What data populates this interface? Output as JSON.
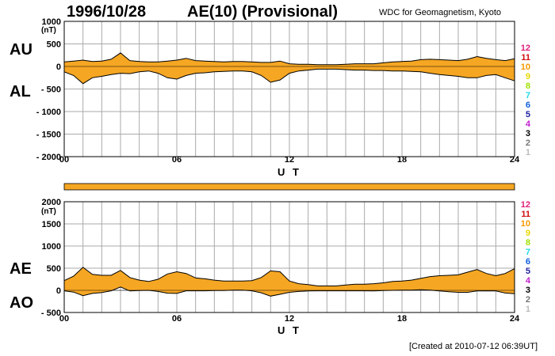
{
  "header": {
    "date": "1996/10/28",
    "title": "AE(10) (Provisional)",
    "organization": "WDC for Geomagnetism, Kyoto"
  },
  "footer": {
    "created": "[Created at 2010-07-12 06:39UT]"
  },
  "colors": {
    "fill": "#f5a623",
    "line": "#000000",
    "grid": "#aaaaaa",
    "bar": "#f5a623"
  },
  "legend_numbers": [
    {
      "label": "12",
      "color": "#e0207a"
    },
    {
      "label": "11",
      "color": "#d01010"
    },
    {
      "label": "10",
      "color": "#f59a00"
    },
    {
      "label": "9",
      "color": "#e8d800"
    },
    {
      "label": "8",
      "color": "#a0e000"
    },
    {
      "label": "7",
      "color": "#20d8e8"
    },
    {
      "label": "6",
      "color": "#1060e0"
    },
    {
      "label": "5",
      "color": "#2020a0"
    },
    {
      "label": "4",
      "color": "#c020d0"
    },
    {
      "label": "3",
      "color": "#000000"
    },
    {
      "label": "2",
      "color": "#777777"
    },
    {
      "label": "1",
      "color": "#bbbbbb"
    }
  ],
  "chart_data": [
    {
      "type": "area",
      "panel": "AU/AL",
      "side_labels": {
        "upper": "AU",
        "lower": "AL"
      },
      "unit": "(nT)",
      "xlabel": "U T",
      "xlim": [
        0,
        24
      ],
      "xticks": [
        "00",
        "06",
        "12",
        "18",
        "24"
      ],
      "ylim": [
        -2000,
        1000
      ],
      "yticks": [
        "1000",
        "500",
        "0",
        "- 500",
        "- 1000",
        "- 1500",
        "- 2000"
      ],
      "grid": true,
      "x": [
        0,
        0.5,
        1,
        1.5,
        2,
        2.5,
        3,
        3.5,
        4,
        4.5,
        5,
        5.5,
        6,
        6.5,
        7,
        7.5,
        8,
        8.5,
        9,
        9.5,
        10,
        10.5,
        11,
        11.5,
        12,
        12.5,
        13,
        13.5,
        14,
        14.5,
        15,
        15.5,
        16,
        16.5,
        17,
        17.5,
        18,
        18.5,
        19,
        19.5,
        20,
        20.5,
        21,
        21.5,
        22,
        22.5,
        23,
        23.5,
        24
      ],
      "series": [
        {
          "name": "AU",
          "values": [
            100,
            120,
            140,
            110,
            120,
            160,
            300,
            130,
            110,
            100,
            100,
            120,
            140,
            180,
            130,
            120,
            110,
            100,
            110,
            110,
            100,
            90,
            90,
            120,
            60,
            50,
            50,
            40,
            40,
            40,
            50,
            60,
            60,
            60,
            80,
            100,
            110,
            120,
            150,
            160,
            150,
            140,
            130,
            160,
            220,
            180,
            150,
            130,
            170
          ]
        },
        {
          "name": "AL",
          "values": [
            -120,
            -200,
            -380,
            -250,
            -220,
            -180,
            -150,
            -160,
            -120,
            -100,
            -150,
            -250,
            -280,
            -200,
            -150,
            -140,
            -120,
            -110,
            -100,
            -100,
            -120,
            -200,
            -350,
            -300,
            -150,
            -100,
            -80,
            -60,
            -60,
            -60,
            -70,
            -80,
            -80,
            -90,
            -90,
            -100,
            -100,
            -110,
            -120,
            -150,
            -180,
            -200,
            -220,
            -250,
            -250,
            -200,
            -180,
            -250,
            -320
          ]
        }
      ]
    },
    {
      "type": "area",
      "panel": "AE/AO",
      "side_labels": {
        "upper": "AE",
        "lower": "AO"
      },
      "unit": "(nT)",
      "xlabel": "U T",
      "xlim": [
        0,
        24
      ],
      "xticks": [
        "00",
        "06",
        "12",
        "18",
        "24"
      ],
      "ylim": [
        -500,
        2000
      ],
      "yticks": [
        "2000",
        "1500",
        "1000",
        "500",
        "0",
        "- 500"
      ],
      "grid": true,
      "x": [
        0,
        0.5,
        1,
        1.5,
        2,
        2.5,
        3,
        3.5,
        4,
        4.5,
        5,
        5.5,
        6,
        6.5,
        7,
        7.5,
        8,
        8.5,
        9,
        9.5,
        10,
        10.5,
        11,
        11.5,
        12,
        12.5,
        13,
        13.5,
        14,
        14.5,
        15,
        15.5,
        16,
        16.5,
        17,
        17.5,
        18,
        18.5,
        19,
        19.5,
        20,
        20.5,
        21,
        21.5,
        22,
        22.5,
        23,
        23.5,
        24
      ],
      "series": [
        {
          "name": "AE",
          "values": [
            220,
            320,
            520,
            360,
            340,
            340,
            450,
            290,
            230,
            200,
            250,
            370,
            420,
            380,
            280,
            260,
            230,
            210,
            210,
            210,
            220,
            290,
            440,
            420,
            210,
            150,
            130,
            100,
            100,
            100,
            120,
            140,
            140,
            150,
            170,
            200,
            210,
            230,
            270,
            310,
            330,
            340,
            350,
            410,
            470,
            380,
            330,
            380,
            490
          ]
        },
        {
          "name": "AO",
          "values": [
            -10,
            -40,
            -120,
            -70,
            -50,
            -10,
            75,
            -15,
            -5,
            0,
            -25,
            -65,
            -70,
            -10,
            -10,
            -10,
            -5,
            -5,
            5,
            5,
            -10,
            -55,
            -130,
            -90,
            -45,
            -25,
            -15,
            -10,
            -10,
            -10,
            -10,
            -10,
            -10,
            -15,
            -5,
            0,
            5,
            5,
            15,
            5,
            -15,
            -30,
            -45,
            -45,
            -15,
            -10,
            -15,
            -60,
            -75
          ]
        }
      ]
    }
  ]
}
